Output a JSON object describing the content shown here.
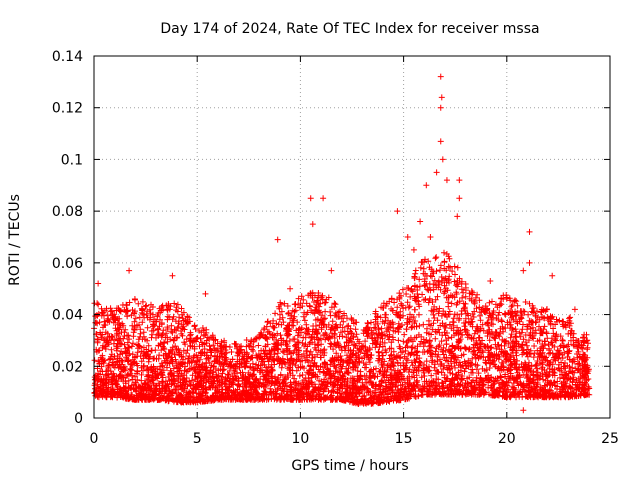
{
  "chart_data": {
    "type": "scatter",
    "title": "Day 174 of 2024, Rate Of TEC Index for receiver mssa",
    "xlabel": "GPS time / hours",
    "ylabel": "ROTI / TECUs",
    "xlim": [
      0,
      25
    ],
    "ylim": [
      0,
      0.14
    ],
    "xticks": [
      0,
      5,
      10,
      15,
      20,
      25
    ],
    "xtick_labels": [
      "0",
      "5",
      "10",
      "15",
      "20",
      "25"
    ],
    "yticks": [
      0,
      0.02,
      0.04,
      0.06,
      0.08,
      0.1,
      0.12,
      0.14
    ],
    "ytick_labels": [
      "0",
      "0.02",
      "0.04",
      "0.06",
      "0.08",
      "0.1",
      "0.12",
      "0.14"
    ],
    "grid": true,
    "marker": "+",
    "color": "#ff0000",
    "x_data_range": [
      0,
      24
    ],
    "series": [
      {
        "name": "ROTI",
        "envelope_hours": [
          0,
          1,
          2,
          3,
          4,
          5,
          6,
          7,
          8,
          9,
          10,
          11,
          12,
          13,
          14,
          15,
          16,
          17,
          18,
          19,
          20,
          21,
          22,
          23,
          24
        ],
        "typical_min": [
          0.008,
          0.008,
          0.007,
          0.007,
          0.006,
          0.006,
          0.007,
          0.007,
          0.007,
          0.007,
          0.007,
          0.007,
          0.007,
          0.005,
          0.006,
          0.007,
          0.009,
          0.009,
          0.009,
          0.009,
          0.008,
          0.008,
          0.008,
          0.008,
          0.009
        ],
        "typical_max": [
          0.045,
          0.042,
          0.047,
          0.043,
          0.045,
          0.037,
          0.031,
          0.029,
          0.032,
          0.045,
          0.047,
          0.05,
          0.042,
          0.035,
          0.045,
          0.05,
          0.062,
          0.065,
          0.055,
          0.045,
          0.048,
          0.045,
          0.042,
          0.04,
          0.032
        ],
        "notable_points": [
          {
            "x": 0.2,
            "y": 0.052
          },
          {
            "x": 1.7,
            "y": 0.057
          },
          {
            "x": 3.8,
            "y": 0.055
          },
          {
            "x": 5.4,
            "y": 0.048
          },
          {
            "x": 8.9,
            "y": 0.069
          },
          {
            "x": 9.5,
            "y": 0.05
          },
          {
            "x": 10.5,
            "y": 0.085
          },
          {
            "x": 10.6,
            "y": 0.075
          },
          {
            "x": 11.1,
            "y": 0.085
          },
          {
            "x": 11.5,
            "y": 0.057
          },
          {
            "x": 14.7,
            "y": 0.08
          },
          {
            "x": 15.2,
            "y": 0.07
          },
          {
            "x": 15.5,
            "y": 0.065
          },
          {
            "x": 15.8,
            "y": 0.076
          },
          {
            "x": 16.1,
            "y": 0.09
          },
          {
            "x": 16.3,
            "y": 0.07
          },
          {
            "x": 16.6,
            "y": 0.095
          },
          {
            "x": 16.8,
            "y": 0.132
          },
          {
            "x": 16.85,
            "y": 0.124
          },
          {
            "x": 16.8,
            "y": 0.12
          },
          {
            "x": 16.8,
            "y": 0.107
          },
          {
            "x": 16.9,
            "y": 0.1
          },
          {
            "x": 17.1,
            "y": 0.092
          },
          {
            "x": 17.7,
            "y": 0.092
          },
          {
            "x": 17.7,
            "y": 0.085
          },
          {
            "x": 17.6,
            "y": 0.078
          },
          {
            "x": 19.2,
            "y": 0.053
          },
          {
            "x": 20.8,
            "y": 0.057
          },
          {
            "x": 21.1,
            "y": 0.072
          },
          {
            "x": 21.1,
            "y": 0.06
          },
          {
            "x": 22.2,
            "y": 0.055
          },
          {
            "x": 23.3,
            "y": 0.042
          },
          {
            "x": 20.8,
            "y": 0.003
          }
        ]
      }
    ]
  }
}
